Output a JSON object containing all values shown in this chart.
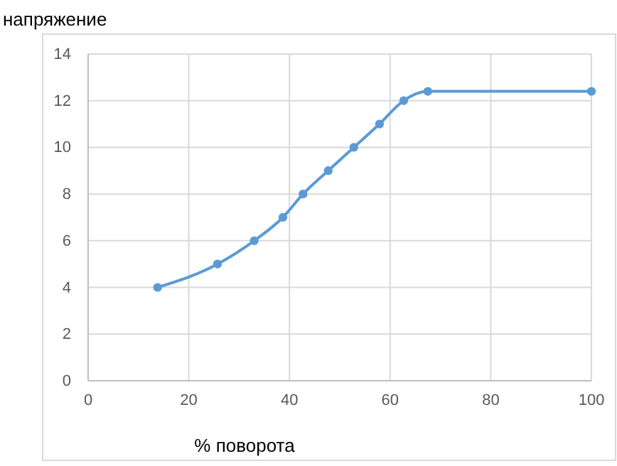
{
  "chart_data": {
    "type": "line",
    "ylabel": "напряжение",
    "xlabel": "% поворота",
    "x": [
      13.8,
      25.7,
      33,
      38.7,
      42.7,
      47.7,
      52.8,
      57.9,
      62.7,
      67.5,
      100
    ],
    "series": [
      {
        "color": "#5b9bd5",
        "values": [
          4,
          5,
          6,
          7,
          8,
          9,
          10,
          11,
          12,
          12.4,
          12.4
        ]
      }
    ],
    "xlim": [
      0,
      100
    ],
    "xticks": [
      0,
      20,
      40,
      60,
      80,
      100
    ],
    "ylim": [
      0,
      14
    ],
    "yticks": [
      0,
      2,
      4,
      6,
      8,
      10,
      12,
      14
    ],
    "grid": true,
    "marker": "circle",
    "line_style": "solid"
  }
}
